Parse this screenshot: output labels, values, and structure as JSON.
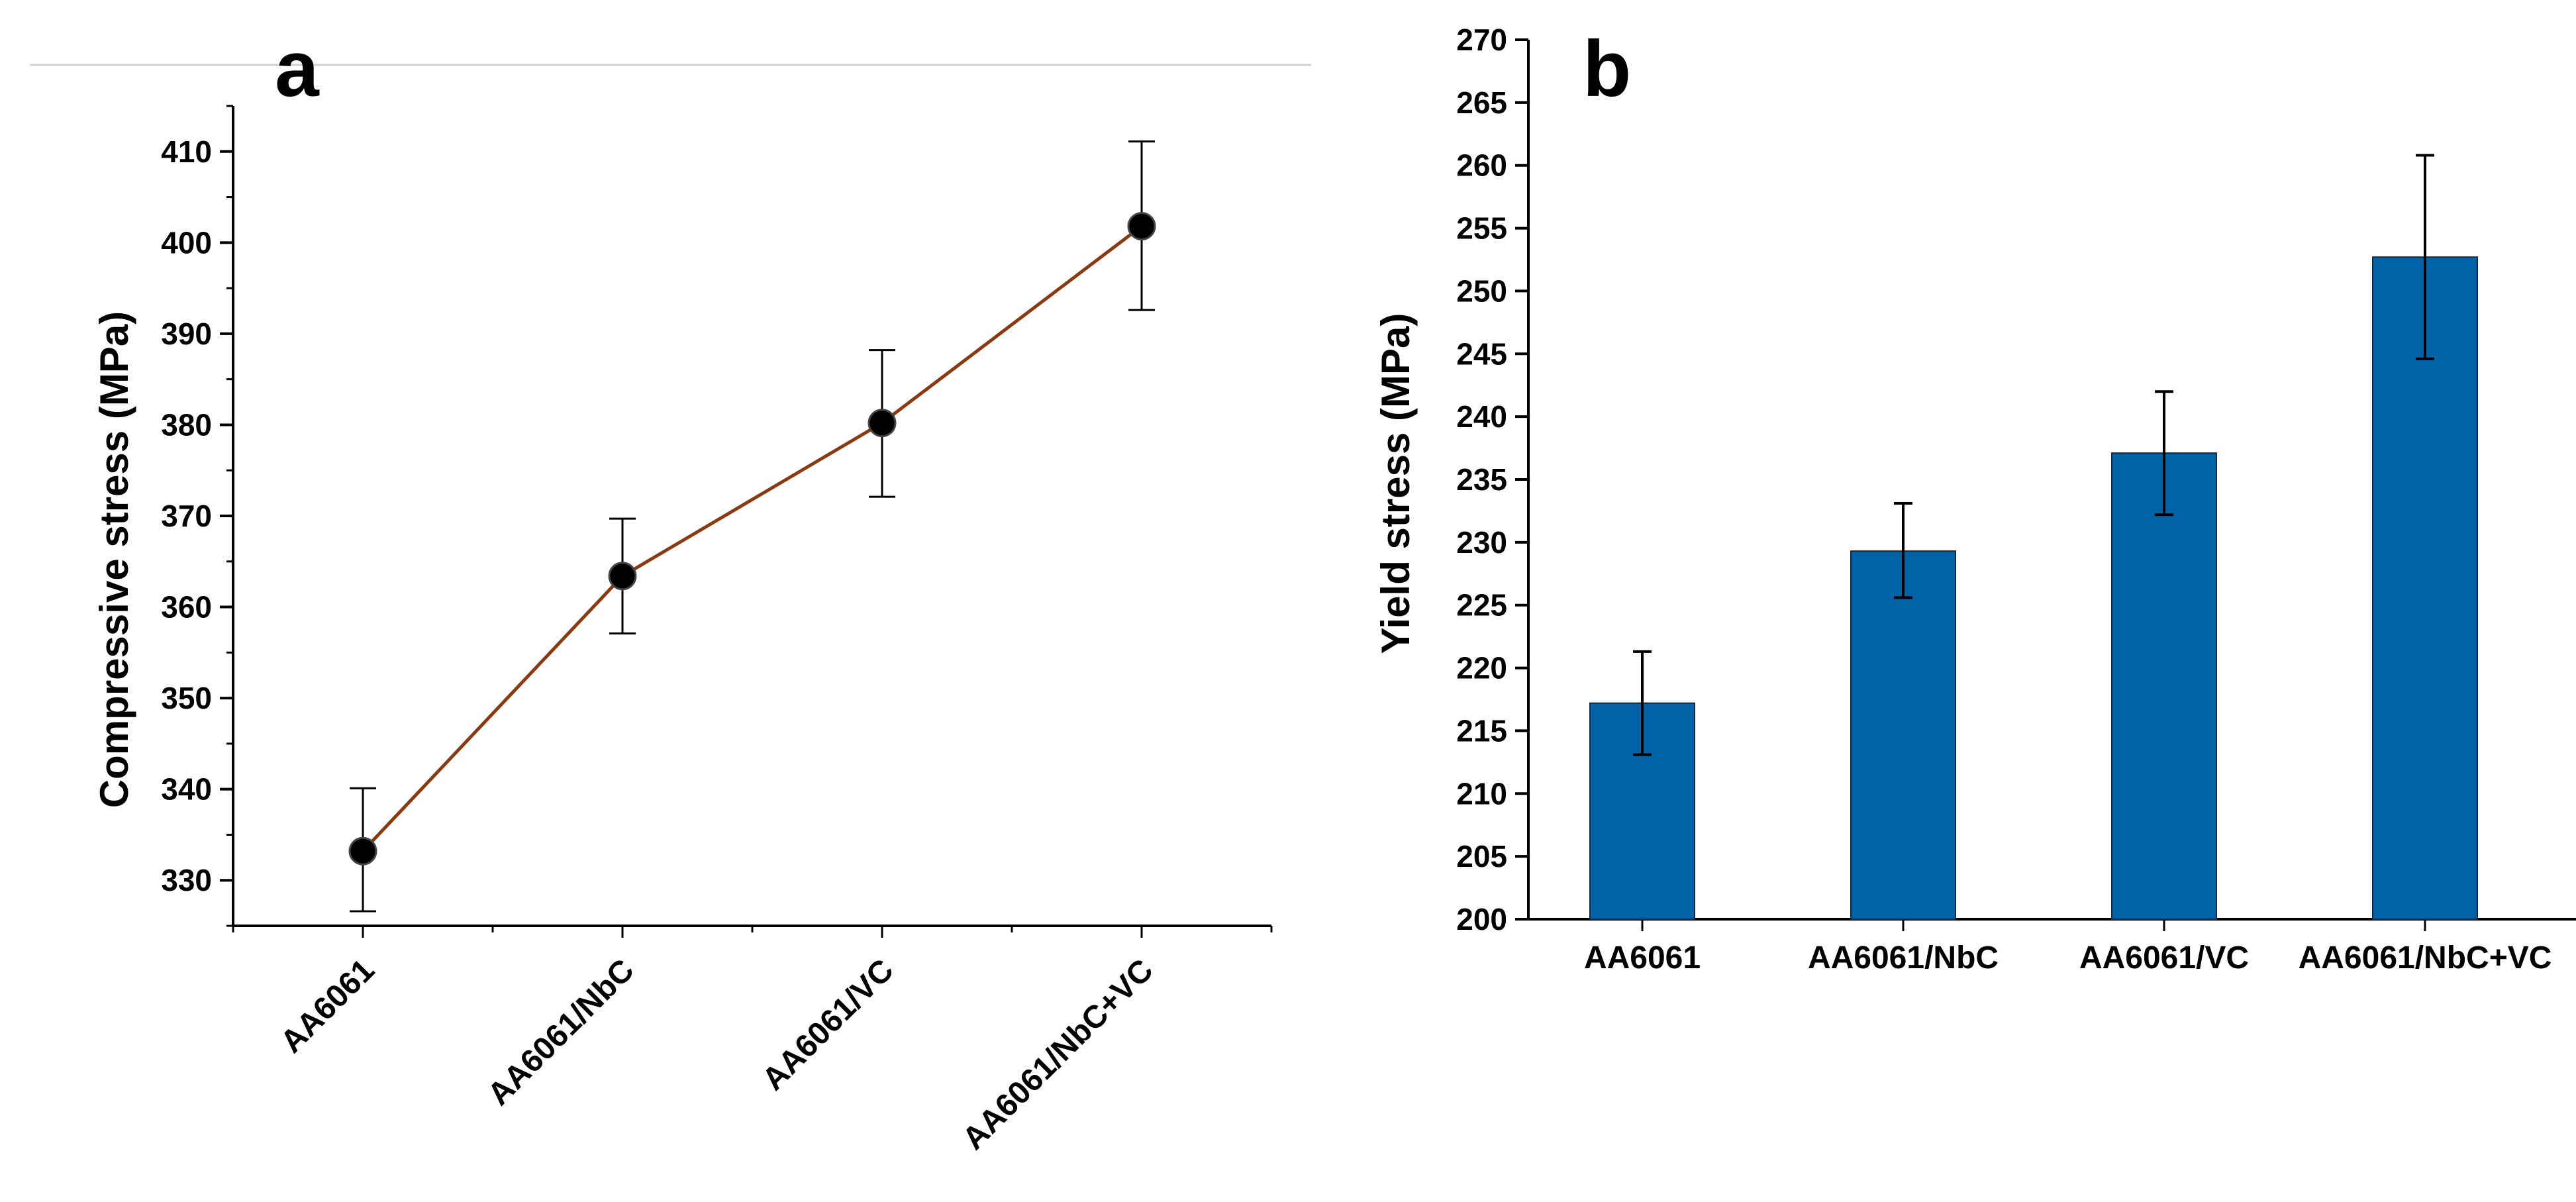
{
  "chart_data": [
    {
      "type": "line",
      "panel_label": "a",
      "title": "",
      "xlabel": "",
      "ylabel": "Compressive stress (MPa)",
      "categories": [
        "AA6061",
        "AA6061/NbC",
        "AA6061/VC",
        "AA6061/NbC+VC"
      ],
      "series": [
        {
          "name": "Compressive stress",
          "values": [
            333.2,
            363.4,
            380.2,
            401.8
          ],
          "error_low": [
            326.6,
            357.1,
            372.1,
            392.6
          ],
          "error_high": [
            340.1,
            369.7,
            388.2,
            411.1
          ],
          "color": "#8B3A10",
          "marker_color": "#000000"
        }
      ],
      "ylim": [
        325,
        415
      ],
      "yticks": [
        330,
        340,
        350,
        360,
        370,
        380,
        390,
        400,
        410
      ],
      "grid": false
    },
    {
      "type": "bar",
      "panel_label": "b",
      "title": "",
      "xlabel": "",
      "ylabel": "Yield stress (MPa)",
      "categories": [
        "AA6061",
        "AA6061/NbC",
        "AA6061/VC",
        "AA6061/NbC+VC"
      ],
      "series": [
        {
          "name": "Yield stress",
          "values": [
            217.2,
            229.3,
            237.1,
            252.7
          ],
          "error_low": [
            213.1,
            225.6,
            232.2,
            244.6
          ],
          "error_high": [
            221.3,
            233.1,
            242.0,
            260.8
          ],
          "color": "#0063A8"
        }
      ],
      "ylim": [
        200,
        270
      ],
      "yticks": [
        200,
        205,
        210,
        215,
        220,
        225,
        230,
        235,
        240,
        245,
        250,
        255,
        260,
        265,
        270
      ],
      "grid": false
    }
  ]
}
